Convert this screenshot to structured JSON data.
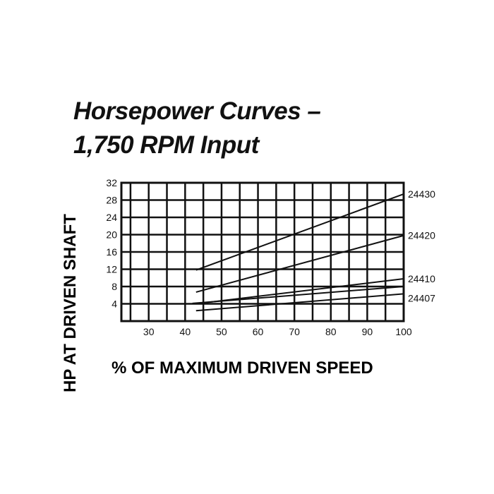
{
  "chart_data": {
    "type": "line",
    "title": "Horsepower Curves –",
    "subtitle": "1,750 RPM Input",
    "xlabel": "% OF MAXIMUM DRIVEN SPEED",
    "ylabel": "HP AT DRIVEN SHAFT",
    "xlim": [
      22.5,
      100
    ],
    "ylim": [
      0,
      32
    ],
    "xticks": [
      30,
      40,
      50,
      60,
      70,
      80,
      90,
      100
    ],
    "yticks": [
      4,
      8,
      12,
      16,
      20,
      24,
      28,
      32
    ],
    "grid": true,
    "series": [
      {
        "name": "24430",
        "x": [
          43,
          100
        ],
        "y": [
          11.8,
          29.4
        ]
      },
      {
        "name": "24420",
        "x": [
          43,
          100
        ],
        "y": [
          6.7,
          19.8
        ]
      },
      {
        "name": "24410",
        "x": [
          43,
          100
        ],
        "y": [
          4.0,
          9.8
        ]
      },
      {
        "name": "24407",
        "x": [
          43,
          100
        ],
        "y": [
          2.4,
          6.3
        ]
      }
    ],
    "extra_lines": [
      {
        "x": [
          22.5,
          100
        ],
        "y": [
          8,
          8
        ]
      },
      {
        "x": [
          22.5,
          42
        ],
        "y": [
          4,
          4
        ]
      },
      {
        "x": [
          42,
          100
        ],
        "y": [
          4.1,
          8
        ]
      }
    ]
  }
}
